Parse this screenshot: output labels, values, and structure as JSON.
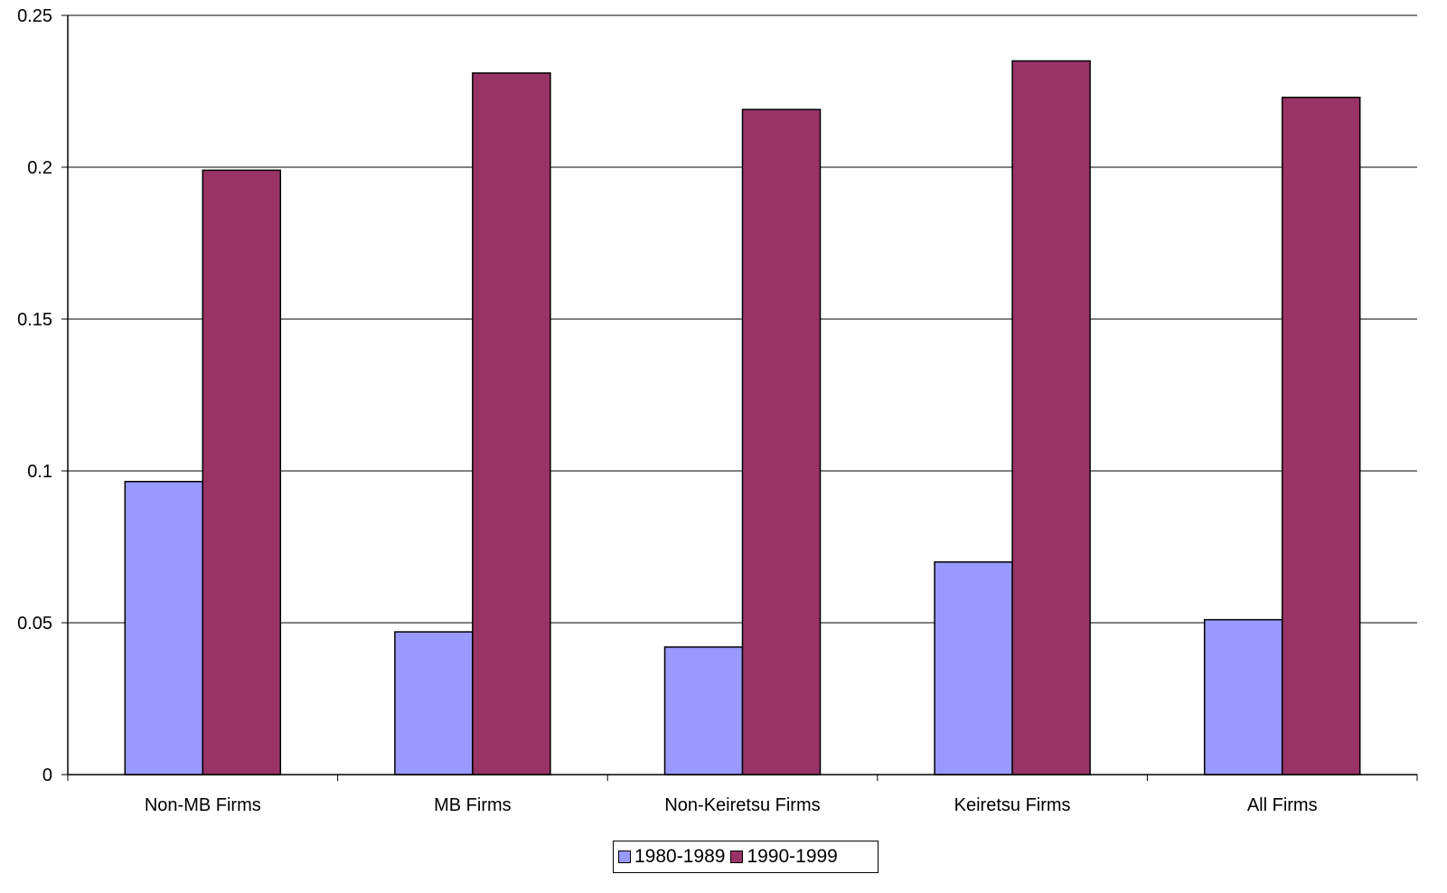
{
  "chart_data": {
    "type": "bar",
    "categories": [
      "Non-MB Firms",
      "MB Firms",
      "Non-Keiretsu Firms",
      "Keiretsu Firms",
      "All Firms"
    ],
    "series": [
      {
        "name": "1980-1989",
        "values": [
          0.0965,
          0.047,
          0.042,
          0.07,
          0.051
        ],
        "color": "#9999ff"
      },
      {
        "name": "1990-1999",
        "values": [
          0.199,
          0.231,
          0.219,
          0.235,
          0.223
        ],
        "color": "#993366"
      }
    ],
    "ylim": [
      0,
      0.25
    ],
    "yticks": [
      0,
      0.05,
      0.1,
      0.15,
      0.2,
      0.25
    ],
    "ytick_labels": [
      "0",
      "0.05",
      "0.1",
      "0.15",
      "0.2",
      "0.25"
    ],
    "grid": true,
    "legend_position": "bottom-center",
    "title": "",
    "xlabel": "",
    "ylabel": ""
  }
}
